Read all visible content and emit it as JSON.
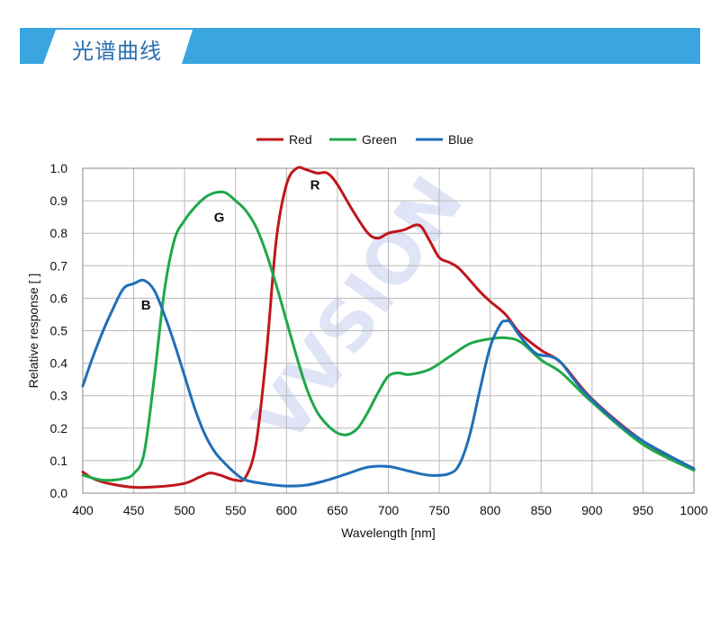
{
  "header": {
    "title": "光谱曲线"
  },
  "watermark": {
    "text": "VVSION",
    "color_main": "#8d9ee0",
    "color_accent": "#f0a0a0"
  },
  "chart_data": {
    "type": "line",
    "xlabel": "Wavelength [nm]",
    "ylabel": "Relative response [ ]",
    "xlim": [
      400,
      1000
    ],
    "ylim": [
      0,
      1.0
    ],
    "xticks": [
      400,
      450,
      500,
      550,
      600,
      650,
      700,
      750,
      800,
      850,
      900,
      950,
      1000
    ],
    "yticks": [
      "0.0",
      "0.1",
      "0.2",
      "0.3",
      "0.4",
      "0.5",
      "0.6",
      "0.7",
      "0.8",
      "0.9",
      "1.0"
    ],
    "grid": true,
    "legend_position": "top",
    "annotations": [
      {
        "text": "R",
        "x": 628,
        "y": 0.935
      },
      {
        "text": "G",
        "x": 534,
        "y": 0.835
      },
      {
        "text": "B",
        "x": 462,
        "y": 0.565
      }
    ],
    "series": [
      {
        "name": "Red",
        "color": "#c0161c",
        "x": [
          400,
          410,
          425,
          450,
          475,
          500,
          515,
          525,
          535,
          550,
          560,
          570,
          580,
          590,
          600,
          610,
          620,
          630,
          640,
          650,
          665,
          680,
          690,
          700,
          715,
          730,
          740,
          750,
          760,
          770,
          790,
          800,
          815,
          830,
          850,
          870,
          900,
          950,
          1000
        ],
        "y": [
          0.065,
          0.045,
          0.03,
          0.018,
          0.02,
          0.03,
          0.05,
          0.062,
          0.055,
          0.04,
          0.05,
          0.15,
          0.42,
          0.78,
          0.95,
          1.0,
          0.995,
          0.985,
          0.985,
          0.95,
          0.87,
          0.8,
          0.785,
          0.8,
          0.81,
          0.825,
          0.78,
          0.725,
          0.71,
          0.69,
          0.62,
          0.59,
          0.55,
          0.49,
          0.44,
          0.4,
          0.29,
          0.16,
          0.075
        ]
      },
      {
        "name": "Green",
        "color": "#1fa84a",
        "x": [
          400,
          420,
          440,
          450,
          460,
          470,
          480,
          490,
          500,
          510,
          520,
          530,
          540,
          550,
          560,
          570,
          580,
          590,
          600,
          610,
          620,
          630,
          640,
          650,
          660,
          670,
          680,
          690,
          700,
          710,
          720,
          740,
          760,
          780,
          800,
          815,
          830,
          850,
          870,
          900,
          950,
          1000
        ],
        "y": [
          0.055,
          0.04,
          0.045,
          0.06,
          0.12,
          0.35,
          0.62,
          0.78,
          0.84,
          0.88,
          0.91,
          0.925,
          0.925,
          0.9,
          0.87,
          0.82,
          0.74,
          0.64,
          0.53,
          0.42,
          0.32,
          0.25,
          0.21,
          0.185,
          0.18,
          0.2,
          0.25,
          0.31,
          0.36,
          0.37,
          0.365,
          0.38,
          0.42,
          0.46,
          0.475,
          0.478,
          0.465,
          0.41,
          0.37,
          0.28,
          0.15,
          0.07
        ]
      },
      {
        "name": "Blue",
        "color": "#1f6fb8",
        "x": [
          400,
          410,
          420,
          430,
          440,
          450,
          460,
          470,
          480,
          490,
          500,
          510,
          520,
          530,
          540,
          550,
          560,
          580,
          600,
          620,
          640,
          660,
          680,
          700,
          720,
          740,
          760,
          770,
          780,
          790,
          800,
          810,
          815,
          820,
          830,
          845,
          860,
          870,
          890,
          920,
          950,
          1000
        ],
        "y": [
          0.33,
          0.42,
          0.5,
          0.57,
          0.63,
          0.645,
          0.655,
          0.625,
          0.55,
          0.46,
          0.36,
          0.26,
          0.18,
          0.125,
          0.09,
          0.06,
          0.04,
          0.028,
          0.022,
          0.025,
          0.04,
          0.06,
          0.08,
          0.082,
          0.068,
          0.055,
          0.06,
          0.09,
          0.18,
          0.32,
          0.45,
          0.52,
          0.53,
          0.525,
          0.48,
          0.43,
          0.42,
          0.4,
          0.32,
          0.23,
          0.16,
          0.075
        ]
      }
    ]
  }
}
